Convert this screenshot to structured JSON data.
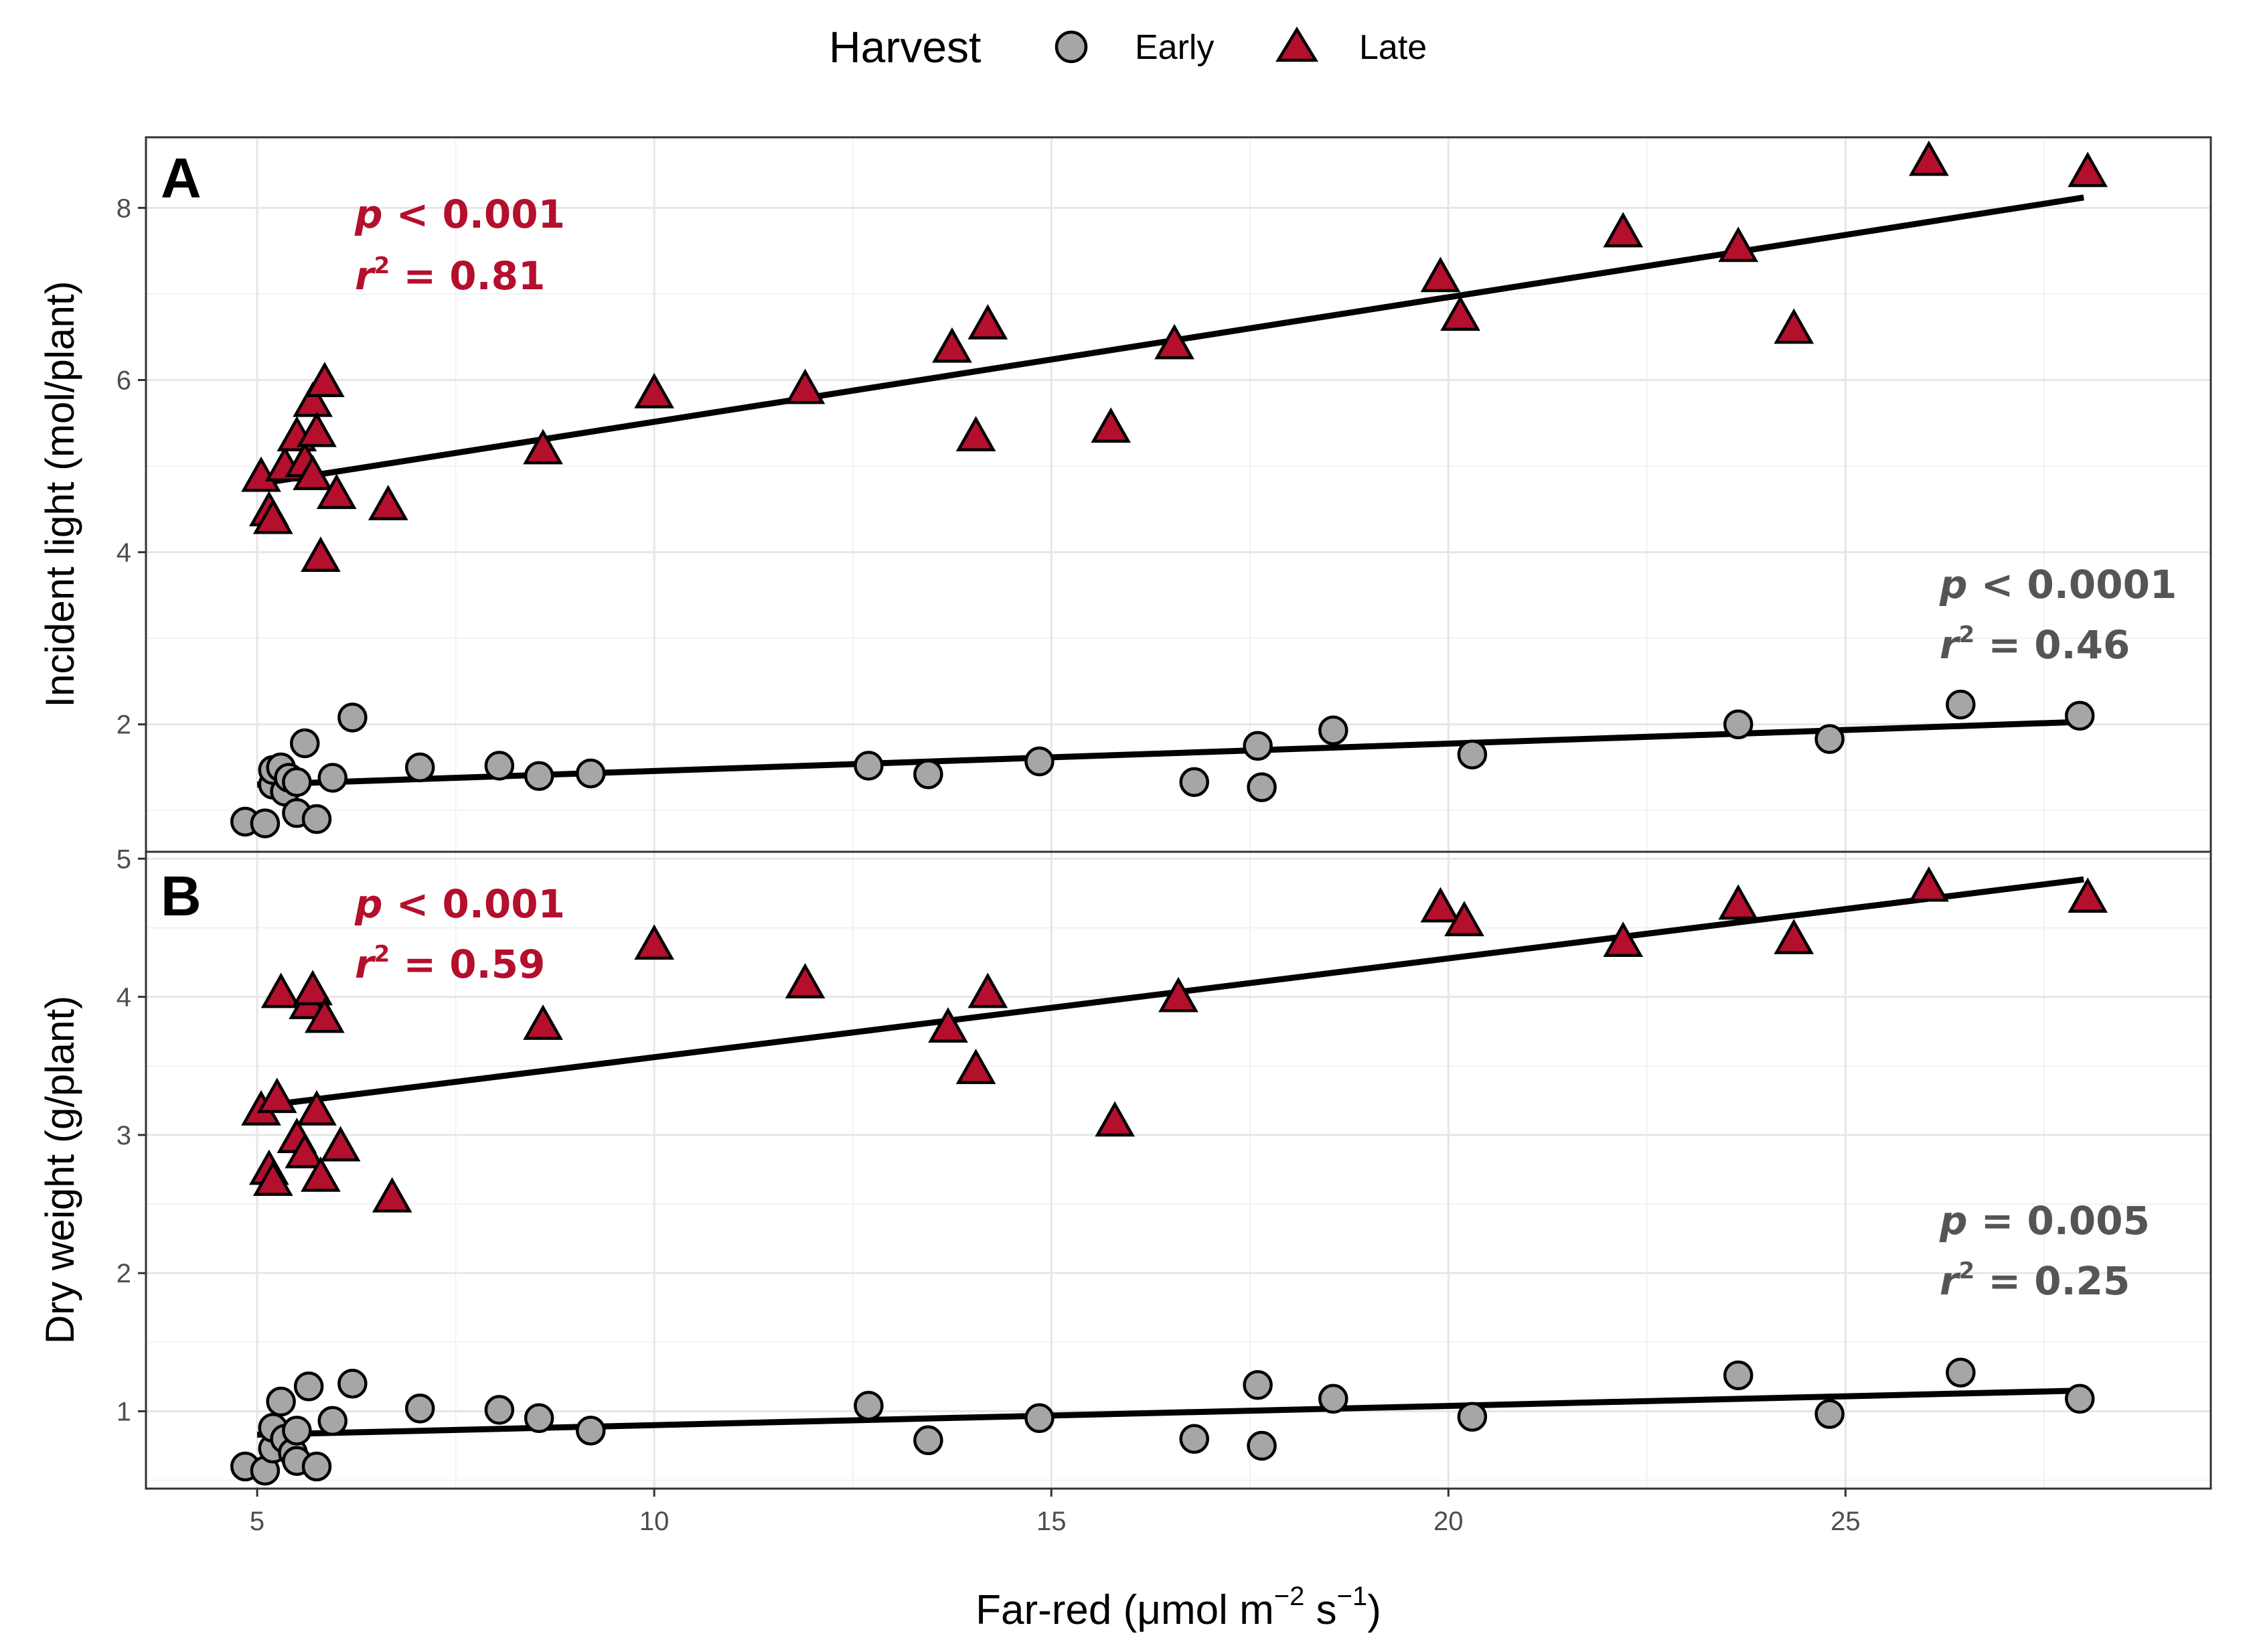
{
  "legend": {
    "title": "Harvest",
    "early_label": "Early",
    "late_label": "Late",
    "early_color": "#a6a6a6",
    "late_color": "#b40f2d",
    "position": "top"
  },
  "x_label_main": "Far-red (μmol m",
  "x_label_exp1": "−2",
  "x_label_mid": " s",
  "x_label_exp2": "−1",
  "x_label_end": ")",
  "chart_data": [
    {
      "type": "scatter",
      "panel": "A",
      "ylabel": "Incident light (mol/plant)",
      "xlim": [
        3.6,
        29.6
      ],
      "ylim": [
        0.52,
        8.82
      ],
      "x_ticks": [
        5,
        10,
        15,
        20,
        25
      ],
      "y_ticks": [
        2,
        4,
        6,
        8
      ],
      "grid": true,
      "stats": {
        "late": {
          "p_sym": "p",
          "p_text": " < 0.001",
          "r_sym": "r",
          "r_sup": "2",
          "r_text": " = 0.81",
          "color": "#b40f2d"
        },
        "early": {
          "p_sym": "p",
          "p_text": " < 0.0001",
          "r_sym": "r",
          "r_sup": "2",
          "r_text": " = 0.46",
          "color": "#555555"
        }
      },
      "series": [
        {
          "name": "Early",
          "fit": {
            "x": [
              5.0,
              28.0
            ],
            "y": [
              1.3,
              2.03
            ]
          },
          "points": [
            [
              4.85,
              0.87
            ],
            [
              5.1,
              0.85
            ],
            [
              5.2,
              1.3
            ],
            [
              5.2,
              1.47
            ],
            [
              5.3,
              1.5
            ],
            [
              5.35,
              1.22
            ],
            [
              5.4,
              1.38
            ],
            [
              5.5,
              1.33
            ],
            [
              5.5,
              0.97
            ],
            [
              5.6,
              1.78
            ],
            [
              5.75,
              0.9
            ],
            [
              5.95,
              1.38
            ],
            [
              6.2,
              2.08
            ],
            [
              7.05,
              1.5
            ],
            [
              8.05,
              1.52
            ],
            [
              8.55,
              1.4
            ],
            [
              9.2,
              1.43
            ],
            [
              12.7,
              1.52
            ],
            [
              13.45,
              1.42
            ],
            [
              14.85,
              1.57
            ],
            [
              16.8,
              1.33
            ],
            [
              17.6,
              1.75
            ],
            [
              17.65,
              1.27
            ],
            [
              18.55,
              1.93
            ],
            [
              20.3,
              1.65
            ],
            [
              23.65,
              2.0
            ],
            [
              24.8,
              1.83
            ],
            [
              26.45,
              2.23
            ],
            [
              27.95,
              2.1
            ]
          ]
        },
        {
          "name": "Late",
          "fit": {
            "x": [
              5.2,
              28.0
            ],
            "y": [
              4.82,
              8.12
            ]
          },
          "points": [
            [
              5.05,
              4.88
            ],
            [
              5.15,
              4.48
            ],
            [
              5.2,
              4.39
            ],
            [
              5.35,
              5.0
            ],
            [
              5.5,
              5.35
            ],
            [
              5.6,
              5.05
            ],
            [
              5.7,
              5.75
            ],
            [
              5.7,
              4.9
            ],
            [
              5.75,
              5.4
            ],
            [
              5.8,
              3.95
            ],
            [
              5.85,
              5.98
            ],
            [
              6.0,
              4.68
            ],
            [
              6.65,
              4.55
            ],
            [
              8.6,
              5.2
            ],
            [
              10.0,
              5.85
            ],
            [
              11.9,
              5.9
            ],
            [
              13.75,
              6.38
            ],
            [
              14.05,
              5.35
            ],
            [
              14.2,
              6.65
            ],
            [
              15.75,
              5.45
            ],
            [
              16.55,
              6.42
            ],
            [
              19.9,
              7.2
            ],
            [
              20.15,
              6.75
            ],
            [
              22.2,
              7.72
            ],
            [
              23.65,
              7.55
            ],
            [
              24.35,
              6.6
            ],
            [
              26.05,
              8.55
            ],
            [
              28.05,
              8.42
            ]
          ]
        }
      ]
    },
    {
      "type": "scatter",
      "panel": "B",
      "ylabel": "Dry weight (g/plant)",
      "xlim": [
        3.6,
        29.6
      ],
      "ylim": [
        0.44,
        5.05
      ],
      "x_ticks": [
        5,
        10,
        15,
        20,
        25
      ],
      "x_tick_labels": [
        "5",
        "10",
        "15",
        "20",
        "25"
      ],
      "y_ticks": [
        1,
        2,
        3,
        4,
        5
      ],
      "grid": true,
      "stats": {
        "late": {
          "p_sym": "p",
          "p_text": " < 0.001",
          "r_sym": "r",
          "r_sup": "2",
          "r_text": " = 0.59",
          "color": "#b40f2d"
        },
        "early": {
          "p_sym": "p",
          "p_text": " = 0.005",
          "r_sym": "r",
          "r_sup": "2",
          "r_text": " = 0.25",
          "color": "#555555"
        }
      },
      "series": [
        {
          "name": "Early",
          "fit": {
            "x": [
              5.0,
              28.0
            ],
            "y": [
              0.83,
              1.15
            ]
          },
          "points": [
            [
              4.85,
              0.6
            ],
            [
              5.1,
              0.57
            ],
            [
              5.2,
              0.73
            ],
            [
              5.2,
              0.88
            ],
            [
              5.3,
              1.07
            ],
            [
              5.35,
              0.8
            ],
            [
              5.45,
              0.7
            ],
            [
              5.5,
              0.86
            ],
            [
              5.5,
              0.64
            ],
            [
              5.65,
              1.18
            ],
            [
              5.75,
              0.6
            ],
            [
              5.95,
              0.93
            ],
            [
              6.2,
              1.2
            ],
            [
              7.05,
              1.02
            ],
            [
              8.05,
              1.01
            ],
            [
              8.55,
              0.95
            ],
            [
              9.2,
              0.86
            ],
            [
              12.7,
              1.04
            ],
            [
              13.45,
              0.79
            ],
            [
              14.85,
              0.95
            ],
            [
              16.8,
              0.8
            ],
            [
              17.6,
              1.19
            ],
            [
              17.65,
              0.75
            ],
            [
              18.55,
              1.09
            ],
            [
              20.3,
              0.96
            ],
            [
              23.65,
              1.26
            ],
            [
              24.8,
              0.98
            ],
            [
              26.45,
              1.28
            ],
            [
              27.95,
              1.09
            ]
          ]
        },
        {
          "name": "Late",
          "fit": {
            "x": [
              5.2,
              28.0
            ],
            "y": [
              3.22,
              4.85
            ]
          },
          "points": [
            [
              5.05,
              3.18
            ],
            [
              5.15,
              2.75
            ],
            [
              5.2,
              2.67
            ],
            [
              5.25,
              3.27
            ],
            [
              5.3,
              4.03
            ],
            [
              5.5,
              2.98
            ],
            [
              5.6,
              2.87
            ],
            [
              5.65,
              3.95
            ],
            [
              5.7,
              4.05
            ],
            [
              5.75,
              3.18
            ],
            [
              5.8,
              2.7
            ],
            [
              5.85,
              3.85
            ],
            [
              6.05,
              2.92
            ],
            [
              6.7,
              2.55
            ],
            [
              8.6,
              3.8
            ],
            [
              10.0,
              4.38
            ],
            [
              11.9,
              4.1
            ],
            [
              13.7,
              3.78
            ],
            [
              14.05,
              3.48
            ],
            [
              14.2,
              4.03
            ],
            [
              15.8,
              3.1
            ],
            [
              16.6,
              4.0
            ],
            [
              19.9,
              4.65
            ],
            [
              20.2,
              4.55
            ],
            [
              22.2,
              4.4
            ],
            [
              23.65,
              4.67
            ],
            [
              24.35,
              4.42
            ],
            [
              26.05,
              4.8
            ],
            [
              28.05,
              4.72
            ]
          ]
        }
      ]
    }
  ]
}
